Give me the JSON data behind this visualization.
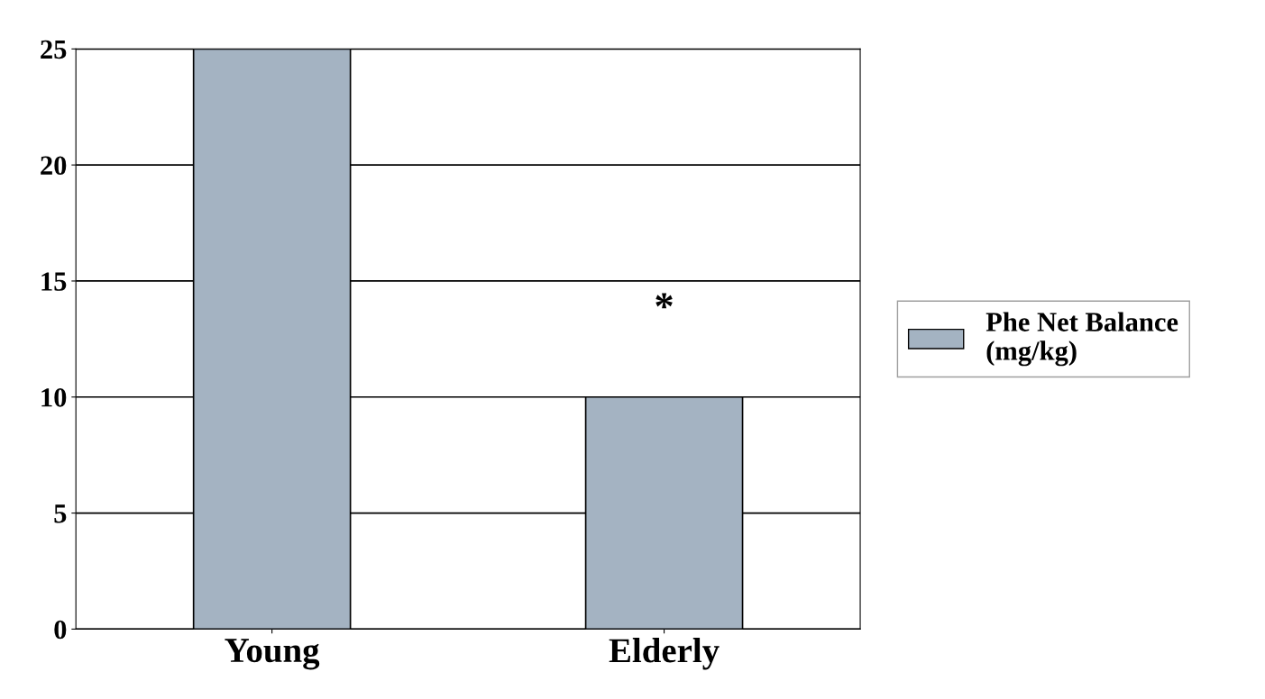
{
  "chart_data": {
    "type": "bar",
    "categories": [
      "Young",
      "Elderly"
    ],
    "series": [
      {
        "name": "Phe Net Balance (mg/kg)",
        "color": "#a4b3c2",
        "values": [
          25,
          10
        ]
      }
    ],
    "ylim": [
      0,
      25
    ],
    "yticks": [
      0,
      5,
      10,
      15,
      20,
      25
    ],
    "grid": "y",
    "legend": "right",
    "annotations": [
      "*"
    ]
  }
}
